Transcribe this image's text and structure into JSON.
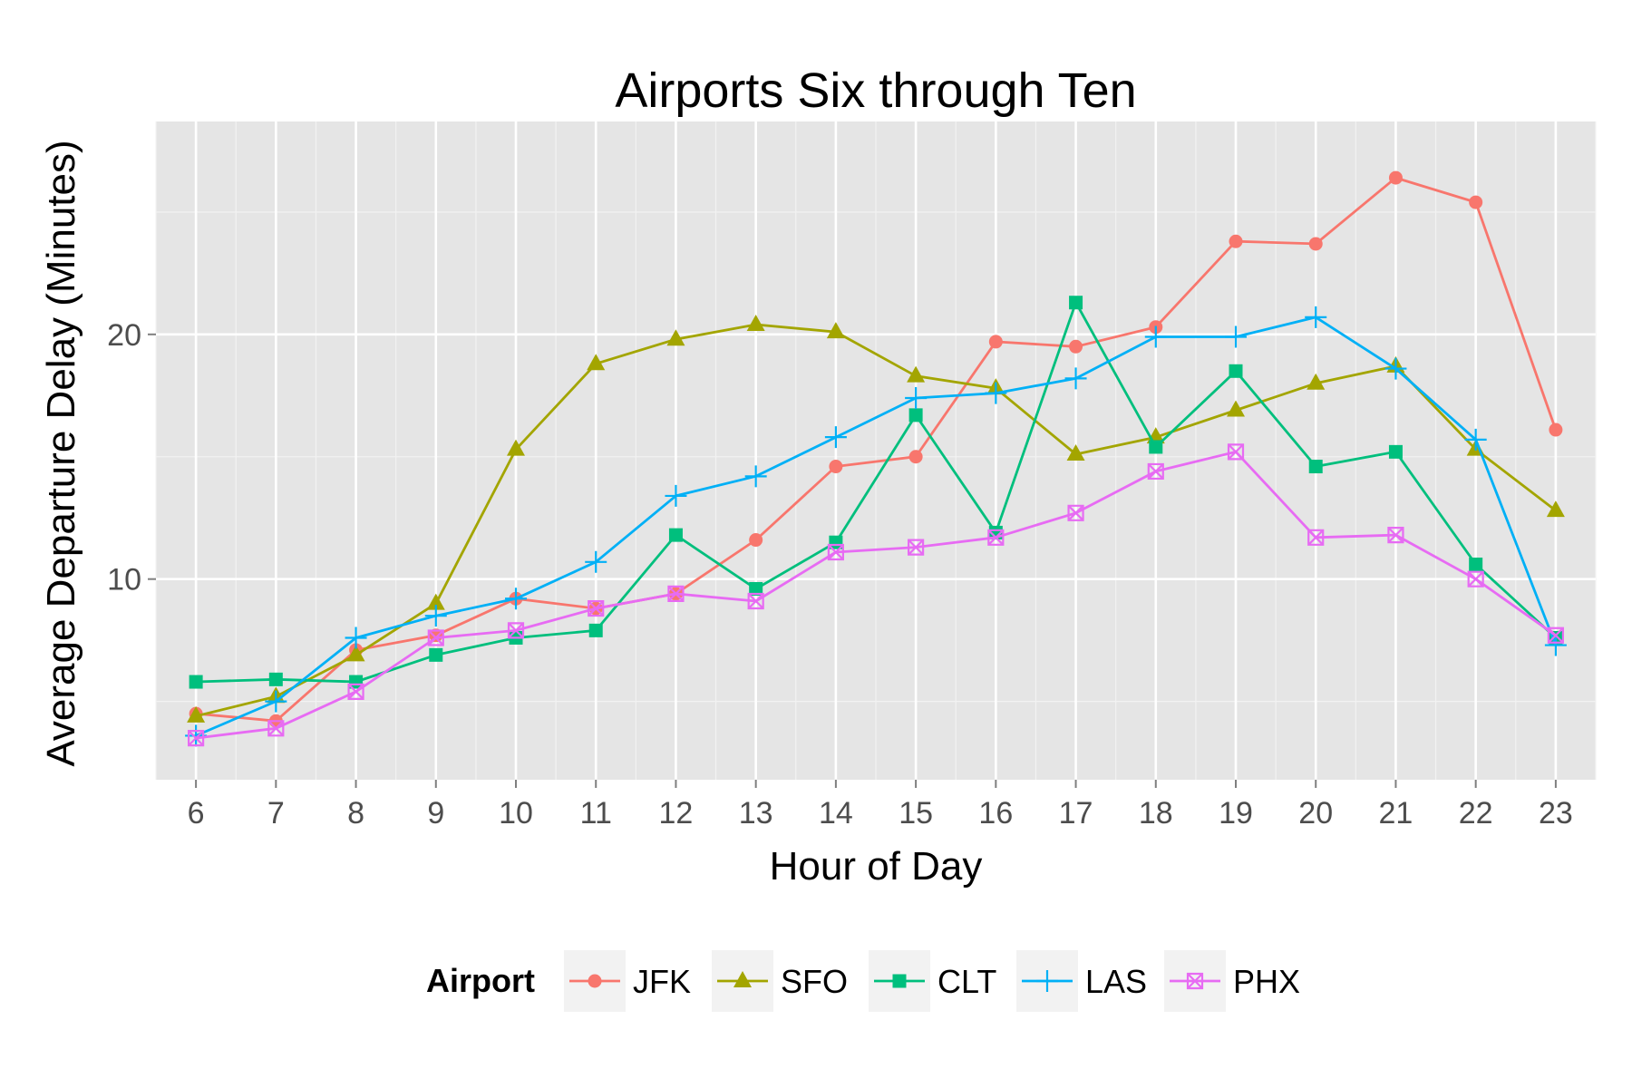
{
  "chart_data": {
    "type": "line",
    "title": "Airports Six through Ten",
    "xlabel": "Hour of Day",
    "ylabel": "Average Departure Delay (Minutes)",
    "x": [
      6,
      7,
      8,
      9,
      10,
      11,
      12,
      13,
      14,
      15,
      16,
      17,
      18,
      19,
      20,
      21,
      22,
      23
    ],
    "xlim": [
      5.5,
      23.5
    ],
    "ylim": [
      1.8,
      28.7
    ],
    "y_ticks": [
      10,
      20
    ],
    "grid": true,
    "legend": {
      "title": "Airport",
      "position": "bottom"
    },
    "series": [
      {
        "name": "JFK",
        "color": "#F8766D",
        "marker": "circle",
        "values": [
          4.5,
          4.2,
          7.1,
          7.7,
          9.2,
          8.8,
          9.4,
          11.6,
          14.6,
          15.0,
          19.7,
          19.5,
          20.3,
          23.8,
          23.7,
          26.4,
          25.4,
          16.1
        ]
      },
      {
        "name": "SFO",
        "color": "#A3A500",
        "marker": "triangle",
        "values": [
          4.4,
          5.2,
          6.9,
          9.0,
          15.3,
          18.8,
          19.8,
          20.4,
          20.1,
          18.3,
          17.8,
          15.1,
          15.8,
          16.9,
          18.0,
          18.7,
          15.3,
          12.8
        ]
      },
      {
        "name": "CLT",
        "color": "#00BF7D",
        "marker": "square",
        "values": [
          5.8,
          5.9,
          5.8,
          6.9,
          7.6,
          7.9,
          11.8,
          9.6,
          11.5,
          16.7,
          11.9,
          21.3,
          15.4,
          18.5,
          14.6,
          15.2,
          10.6,
          7.6
        ]
      },
      {
        "name": "LAS",
        "color": "#00B0F6",
        "marker": "plus",
        "values": [
          3.6,
          5.0,
          7.6,
          8.5,
          9.2,
          10.7,
          13.4,
          14.2,
          15.8,
          17.4,
          17.6,
          18.2,
          19.9,
          19.9,
          20.7,
          18.6,
          15.7,
          7.3
        ]
      },
      {
        "name": "PHX",
        "color": "#E76BF3",
        "marker": "boxx",
        "values": [
          3.5,
          3.9,
          5.4,
          7.6,
          7.9,
          8.8,
          9.4,
          9.1,
          11.1,
          11.3,
          11.7,
          12.7,
          14.4,
          15.2,
          11.7,
          11.8,
          10.0,
          7.7
        ]
      }
    ]
  }
}
